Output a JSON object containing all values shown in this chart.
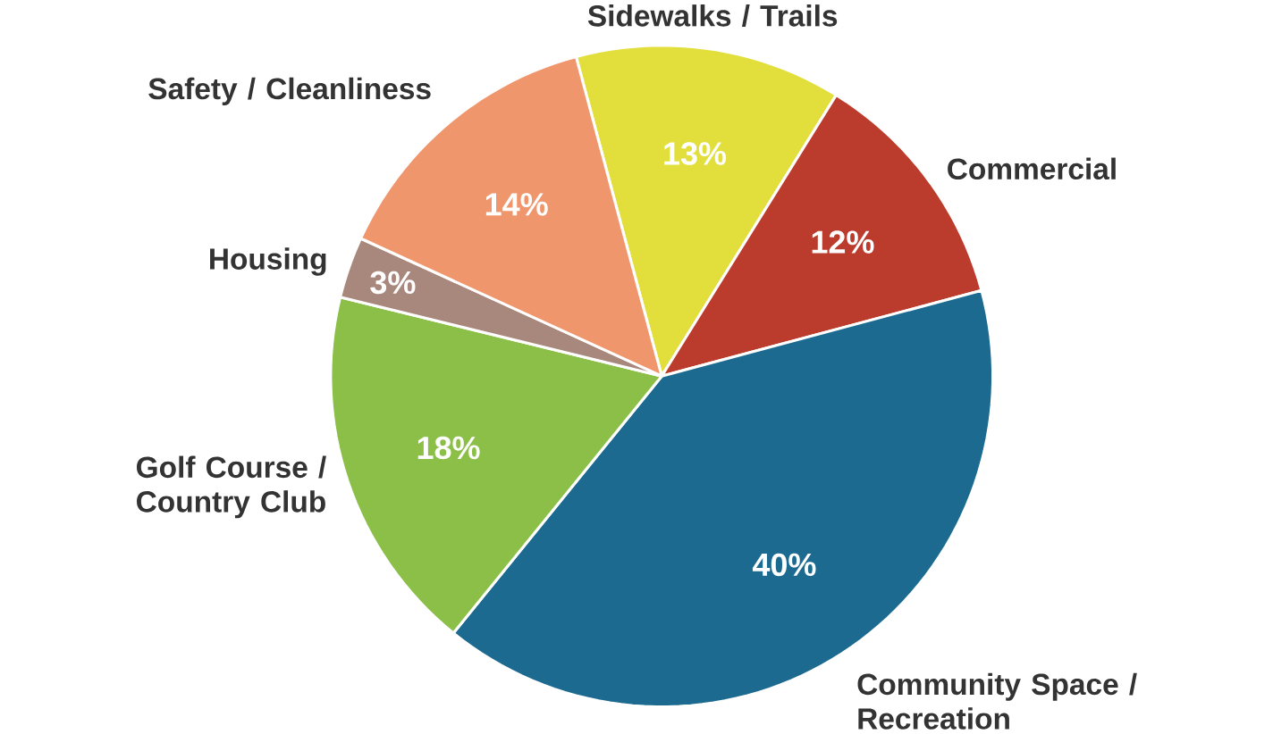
{
  "chart_data": {
    "type": "pie",
    "categories": [
      "Sidewalks / Trails",
      "Commercial",
      "Community Space / Recreation",
      "Golf Course / Country Club",
      "Housing",
      "Safety / Cleanliness"
    ],
    "values": [
      13,
      12,
      40,
      18,
      3,
      14
    ],
    "colors": [
      "#e2df3c",
      "#bb3c2c",
      "#1c6a90",
      "#8cbf48",
      "#a8877c",
      "#f0966c"
    ],
    "value_labels": [
      "13%",
      "12%",
      "40%",
      "18%",
      "3%",
      "14%"
    ],
    "legend": false
  }
}
